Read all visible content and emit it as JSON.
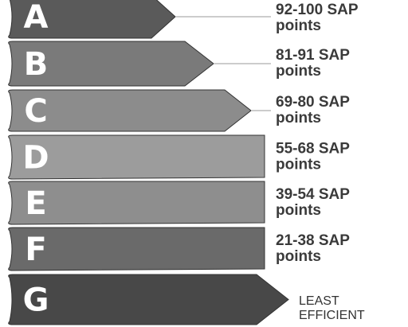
{
  "bands": [
    {
      "letter": "A",
      "range": "92-100 SAP",
      "unit": "points"
    },
    {
      "letter": "B",
      "range": "81-91 SAP",
      "unit": "points"
    },
    {
      "letter": "C",
      "range": "69-80 SAP",
      "unit": "points"
    },
    {
      "letter": "D",
      "range": "55-68 SAP",
      "unit": "points"
    },
    {
      "letter": "E",
      "range": "39-54 SAP",
      "unit": "points"
    },
    {
      "letter": "F",
      "range": "21-38 SAP",
      "unit": "points"
    },
    {
      "letter": "G",
      "footer": [
        "LEAST",
        "EFFICIENT"
      ]
    }
  ]
}
